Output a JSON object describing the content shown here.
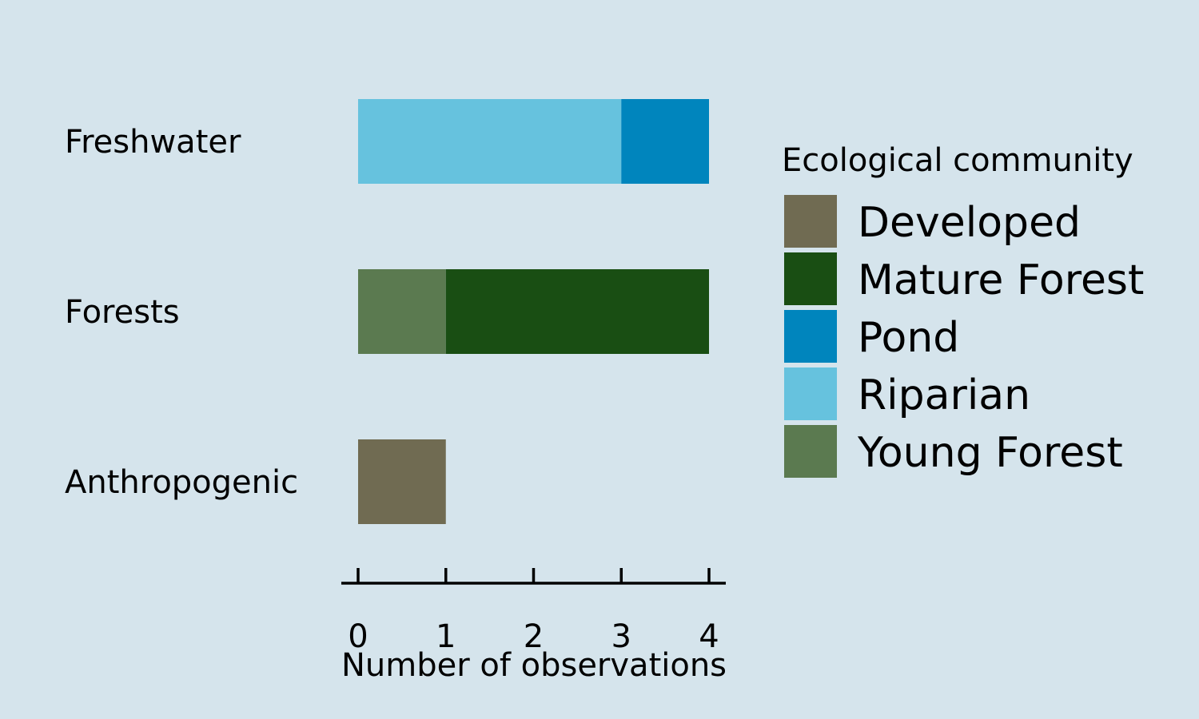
{
  "chart_data": {
    "type": "bar",
    "orientation": "horizontal",
    "stacked": true,
    "categories": [
      "Freshwater",
      "Forests",
      "Anthropogenic"
    ],
    "series": [
      {
        "name": "Developed",
        "color": "#706b52",
        "values": [
          0,
          0,
          1
        ]
      },
      {
        "name": "Mature Forest",
        "color": "#194e13",
        "values": [
          0,
          3,
          0
        ]
      },
      {
        "name": "Pond",
        "color": "#0085bd",
        "values": [
          1,
          0,
          0
        ]
      },
      {
        "name": "Riparian",
        "color": "#66c2de",
        "values": [
          3,
          0,
          0
        ]
      },
      {
        "name": "Young Forest",
        "color": "#5b7a50",
        "values": [
          0,
          1,
          0
        ]
      }
    ],
    "stack_order": {
      "Freshwater": [
        "Riparian",
        "Pond"
      ],
      "Forests": [
        "Young Forest",
        "Mature Forest"
      ],
      "Anthropogenic": [
        "Developed"
      ]
    },
    "xlabel": "Number of observations",
    "xlim": [
      0,
      4
    ],
    "xticks": [
      0,
      1,
      2,
      3,
      4
    ],
    "grid": false,
    "legend": {
      "title": "Ecological community",
      "placement": "right",
      "entries": [
        "Developed",
        "Mature Forest",
        "Pond",
        "Riparian",
        "Young Forest"
      ]
    },
    "background": "#d5e4ec"
  }
}
